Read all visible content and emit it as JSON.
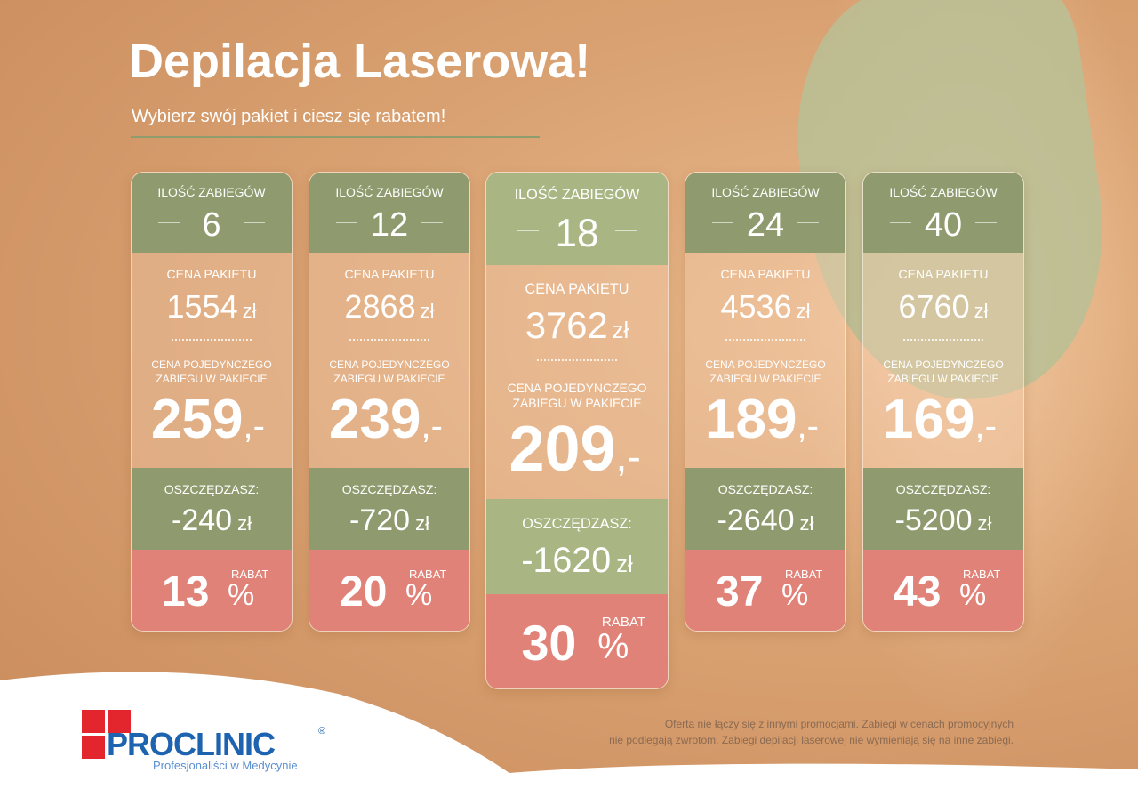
{
  "header": {
    "title": "Depilacja Laserowa!",
    "subtitle": "Wybierz swój pakiet i ciesz się rabatem!"
  },
  "labels": {
    "count": "ILOŚĆ ZABIEGÓW",
    "package_price": "CENA PAKIETU",
    "single_price_line1": "CENA POJEDYNCZEGO",
    "single_price_line2": "ZABIEGU W PAKIECIE",
    "savings": "OSZCZĘDZASZ:",
    "discount": "RABAT",
    "percent": "%",
    "currency": "zł",
    "price_suffix": ",-"
  },
  "packages": [
    {
      "count": "6",
      "package_price": "1554",
      "single_price": "259",
      "savings": "-240",
      "discount": "13"
    },
    {
      "count": "12",
      "package_price": "2868",
      "single_price": "239",
      "savings": "-720",
      "discount": "20"
    },
    {
      "count": "18",
      "package_price": "3762",
      "single_price": "209",
      "savings": "-1620",
      "discount": "30"
    },
    {
      "count": "24",
      "package_price": "4536",
      "single_price": "189",
      "savings": "-2640",
      "discount": "37"
    },
    {
      "count": "40",
      "package_price": "6760",
      "single_price": "169",
      "savings": "-5200",
      "discount": "43"
    }
  ],
  "footer": {
    "note_line1": "Oferta nie łączy się z innymi promocjami. Zabiegi w cenach promocyjnych",
    "note_line2": "nie podlegają zwrotom. Zabiegi depilacji laserowej nie wymieniają się na inne zabiegi.",
    "logo": "PROCLINIC",
    "logo_mark": "®",
    "tagline": "Profesjonaliści w Medycynie"
  }
}
